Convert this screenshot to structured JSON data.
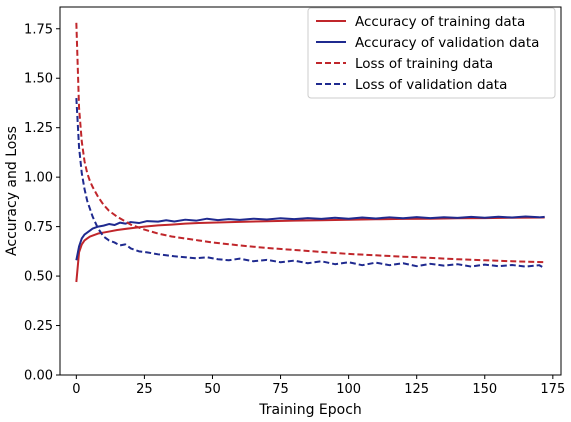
{
  "chart_data": {
    "type": "line",
    "title": "",
    "xlabel": "Training Epoch",
    "ylabel": "Accuracy and Loss",
    "xlim": [
      -6,
      178
    ],
    "ylim": [
      0,
      1.86
    ],
    "xticks": [
      0,
      25,
      50,
      75,
      100,
      125,
      150,
      175
    ],
    "yticks": [
      0.0,
      0.25,
      0.5,
      0.75,
      1.0,
      1.25,
      1.5,
      1.75
    ],
    "ytick_labels": [
      "0.00",
      "0.25",
      "0.50",
      "0.75",
      "1.00",
      "1.25",
      "1.50",
      "1.75"
    ],
    "grid": false,
    "legend_position": "top-right",
    "series": [
      {
        "name": "Accuracy of training data",
        "color": "#c0262b",
        "style": "solid",
        "x": [
          0,
          1,
          2,
          3,
          4,
          5,
          6,
          8,
          10,
          12,
          15,
          20,
          25,
          30,
          35,
          40,
          45,
          50,
          60,
          70,
          80,
          90,
          100,
          110,
          120,
          130,
          140,
          150,
          160,
          172
        ],
        "y": [
          0.47,
          0.62,
          0.66,
          0.68,
          0.69,
          0.7,
          0.705,
          0.715,
          0.72,
          0.725,
          0.733,
          0.742,
          0.75,
          0.756,
          0.76,
          0.765,
          0.768,
          0.77,
          0.774,
          0.777,
          0.78,
          0.782,
          0.785,
          0.787,
          0.789,
          0.79,
          0.792,
          0.793,
          0.795,
          0.796
        ]
      },
      {
        "name": "Accuracy of validation data",
        "color": "#1f2a8f",
        "style": "solid",
        "x": [
          0,
          1,
          2,
          3,
          4,
          5,
          6,
          8,
          10,
          12,
          14,
          16,
          18,
          20,
          23,
          26,
          30,
          33,
          36,
          40,
          44,
          48,
          52,
          56,
          60,
          65,
          70,
          75,
          80,
          85,
          90,
          95,
          100,
          105,
          110,
          115,
          120,
          125,
          130,
          135,
          140,
          145,
          150,
          155,
          160,
          165,
          170,
          172
        ],
        "y": [
          0.58,
          0.65,
          0.69,
          0.71,
          0.72,
          0.73,
          0.74,
          0.75,
          0.755,
          0.763,
          0.758,
          0.77,
          0.765,
          0.773,
          0.768,
          0.778,
          0.775,
          0.782,
          0.776,
          0.785,
          0.78,
          0.79,
          0.783,
          0.788,
          0.784,
          0.79,
          0.786,
          0.792,
          0.788,
          0.793,
          0.789,
          0.795,
          0.79,
          0.796,
          0.791,
          0.797,
          0.792,
          0.798,
          0.793,
          0.797,
          0.794,
          0.799,
          0.795,
          0.8,
          0.796,
          0.801,
          0.797,
          0.799
        ]
      },
      {
        "name": "Loss of training data",
        "color": "#c0262b",
        "style": "dashed",
        "x": [
          0,
          1,
          2,
          3,
          4,
          5,
          6,
          8,
          10,
          12,
          15,
          20,
          25,
          30,
          35,
          40,
          45,
          50,
          60,
          70,
          80,
          90,
          100,
          110,
          120,
          130,
          140,
          150,
          160,
          172
        ],
        "y": [
          1.78,
          1.35,
          1.18,
          1.08,
          1.02,
          0.98,
          0.95,
          0.9,
          0.86,
          0.83,
          0.8,
          0.76,
          0.735,
          0.715,
          0.7,
          0.69,
          0.68,
          0.67,
          0.655,
          0.642,
          0.632,
          0.622,
          0.612,
          0.605,
          0.598,
          0.592,
          0.585,
          0.58,
          0.575,
          0.57
        ]
      },
      {
        "name": "Loss of validation data",
        "color": "#1f2a8f",
        "style": "dashed",
        "x": [
          0,
          1,
          2,
          3,
          4,
          5,
          6,
          7,
          8,
          10,
          12,
          14,
          16,
          18,
          20,
          23,
          26,
          30,
          33,
          36,
          40,
          44,
          48,
          52,
          56,
          60,
          65,
          70,
          75,
          80,
          85,
          90,
          95,
          100,
          105,
          110,
          115,
          120,
          125,
          130,
          135,
          140,
          145,
          150,
          155,
          160,
          165,
          170,
          172
        ],
        "y": [
          1.4,
          1.15,
          1.02,
          0.94,
          0.88,
          0.84,
          0.8,
          0.77,
          0.74,
          0.7,
          0.68,
          0.67,
          0.655,
          0.66,
          0.64,
          0.625,
          0.62,
          0.61,
          0.605,
          0.6,
          0.595,
          0.59,
          0.595,
          0.585,
          0.58,
          0.588,
          0.575,
          0.582,
          0.57,
          0.578,
          0.565,
          0.575,
          0.56,
          0.57,
          0.555,
          0.568,
          0.555,
          0.565,
          0.55,
          0.562,
          0.553,
          0.56,
          0.548,
          0.558,
          0.55,
          0.556,
          0.548,
          0.555,
          0.54
        ]
      }
    ]
  }
}
